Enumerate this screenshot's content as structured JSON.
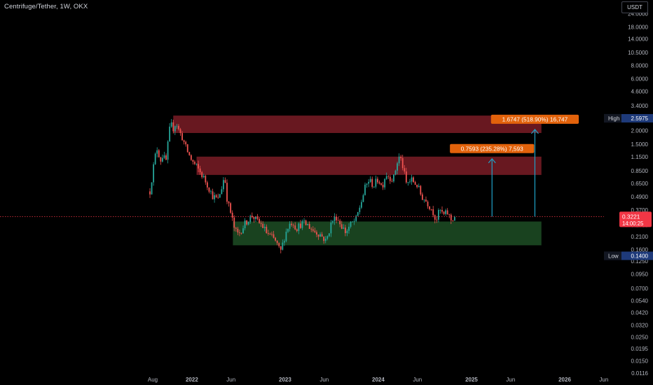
{
  "header": {
    "title": "Centrifuge/Tether, 1W, OKX",
    "currency": "USDT"
  },
  "colors": {
    "up": "#26a69a",
    "down": "#ef5350",
    "resistance_zone": "#7a1c26",
    "support_zone": "#1d4d25",
    "target_line": "#1fa3c9",
    "label_orange": "#e2620b",
    "price_red": "#f23645",
    "high_low_blue": "#1e3a7a"
  },
  "chart_data": {
    "type": "candlestick",
    "title": "Centrifuge/Tether, 1W, OKX",
    "y_scale": "log",
    "ylim": [
      0.0116,
      28
    ],
    "y_ticks": [
      "24.0000",
      "18.0000",
      "14.0000",
      "10.5000",
      "8.0000",
      "6.0000",
      "4.6000",
      "3.4000",
      "2.6000",
      "2.0000",
      "1.5000",
      "1.1500",
      "0.8500",
      "0.6500",
      "0.4900",
      "0.3700",
      "0.2700",
      "0.2100",
      "0.1600",
      "0.1250",
      "0.0950",
      "0.0700",
      "0.0540",
      "0.0420",
      "0.0320",
      "0.0250",
      "0.0195",
      "0.0150",
      "0.0116"
    ],
    "x_ticks": [
      {
        "label": "Aug",
        "t": 2021.58
      },
      {
        "label": "2022",
        "t": 2022.0
      },
      {
        "label": "Jun",
        "t": 2022.42
      },
      {
        "label": "2023",
        "t": 2023.0
      },
      {
        "label": "Jun",
        "t": 2023.42
      },
      {
        "label": "2024",
        "t": 2024.0
      },
      {
        "label": "Jun",
        "t": 2024.42
      },
      {
        "label": "2025",
        "t": 2025.0
      },
      {
        "label": "Jun",
        "t": 2025.42
      },
      {
        "label": "2026",
        "t": 2026.0
      },
      {
        "label": "Jun",
        "t": 2026.42
      }
    ],
    "xlim": [
      2021.3,
      2026.7
    ],
    "path": [
      [
        2021.55,
        0.55
      ],
      [
        2021.6,
        1.1
      ],
      [
        2021.63,
        1.4
      ],
      [
        2021.66,
        1.05
      ],
      [
        2021.69,
        1.2
      ],
      [
        2021.72,
        1.0
      ],
      [
        2021.75,
        1.7
      ],
      [
        2021.77,
        2.3
      ],
      [
        2021.8,
        2.1
      ],
      [
        2021.83,
        2.4
      ],
      [
        2021.86,
        2.0
      ],
      [
        2021.9,
        1.7
      ],
      [
        2021.94,
        1.35
      ],
      [
        2022.0,
        1.05
      ],
      [
        2022.06,
        0.9
      ],
      [
        2022.12,
        0.75
      ],
      [
        2022.18,
        0.6
      ],
      [
        2022.22,
        0.5
      ],
      [
        2022.28,
        0.46
      ],
      [
        2022.32,
        0.6
      ],
      [
        2022.35,
        0.78
      ],
      [
        2022.38,
        0.45
      ],
      [
        2022.42,
        0.34
      ],
      [
        2022.46,
        0.24
      ],
      [
        2022.5,
        0.22
      ],
      [
        2022.56,
        0.27
      ],
      [
        2022.6,
        0.3
      ],
      [
        2022.65,
        0.33
      ],
      [
        2022.7,
        0.29
      ],
      [
        2022.75,
        0.27
      ],
      [
        2022.8,
        0.23
      ],
      [
        2022.85,
        0.21
      ],
      [
        2022.9,
        0.19
      ],
      [
        2022.95,
        0.15
      ],
      [
        2023.0,
        0.22
      ],
      [
        2023.04,
        0.27
      ],
      [
        2023.08,
        0.29
      ],
      [
        2023.12,
        0.25
      ],
      [
        2023.18,
        0.28
      ],
      [
        2023.24,
        0.27
      ],
      [
        2023.3,
        0.24
      ],
      [
        2023.38,
        0.22
      ],
      [
        2023.44,
        0.19
      ],
      [
        2023.5,
        0.29
      ],
      [
        2023.55,
        0.32
      ],
      [
        2023.6,
        0.27
      ],
      [
        2023.65,
        0.23
      ],
      [
        2023.7,
        0.27
      ],
      [
        2023.76,
        0.3
      ],
      [
        2023.82,
        0.45
      ],
      [
        2023.86,
        0.6
      ],
      [
        2023.9,
        0.7
      ],
      [
        2023.95,
        0.62
      ],
      [
        2024.0,
        0.72
      ],
      [
        2024.04,
        0.6
      ],
      [
        2024.08,
        0.8
      ],
      [
        2024.12,
        0.75
      ],
      [
        2024.16,
        0.7
      ],
      [
        2024.2,
        1.0
      ],
      [
        2024.23,
        1.18
      ],
      [
        2024.26,
        0.95
      ],
      [
        2024.3,
        0.65
      ],
      [
        2024.36,
        0.7
      ],
      [
        2024.42,
        0.62
      ],
      [
        2024.46,
        0.5
      ],
      [
        2024.52,
        0.44
      ],
      [
        2024.58,
        0.37
      ],
      [
        2024.62,
        0.3
      ],
      [
        2024.66,
        0.37
      ],
      [
        2024.7,
        0.33
      ],
      [
        2024.74,
        0.35
      ],
      [
        2024.78,
        0.3
      ],
      [
        2024.82,
        0.3221
      ]
    ],
    "zones": [
      {
        "name": "resistance-zone-upper",
        "x": [
          2021.8,
          2025.75
        ],
        "y": [
          1.9,
          2.75
        ],
        "color": "#7a1c26"
      },
      {
        "name": "resistance-zone-lower",
        "x": [
          2022.05,
          2025.75
        ],
        "y": [
          0.78,
          1.15
        ],
        "color": "#7a1c26"
      },
      {
        "name": "support-zone",
        "x": [
          2022.44,
          2025.75
        ],
        "y": [
          0.175,
          0.29
        ],
        "color": "#1d4d25"
      }
    ],
    "targets": [
      {
        "name": "target-1",
        "x": 2025.22,
        "from": 0.3221,
        "to": 1.1,
        "label": "0.7593 (235.28%) 7,593"
      },
      {
        "name": "target-2",
        "x": 2025.68,
        "from": 0.3221,
        "to": 2.05,
        "label": "1.6747 (518.90%) 16,747"
      }
    ],
    "current_price": {
      "value": 0.3221,
      "label": "0.3221",
      "countdown": "14:00:25"
    },
    "high": {
      "label": "High",
      "value": "2.5975",
      "y": 2.5975
    },
    "low": {
      "label": "Low",
      "value": "0.1400",
      "y": 0.14
    }
  }
}
